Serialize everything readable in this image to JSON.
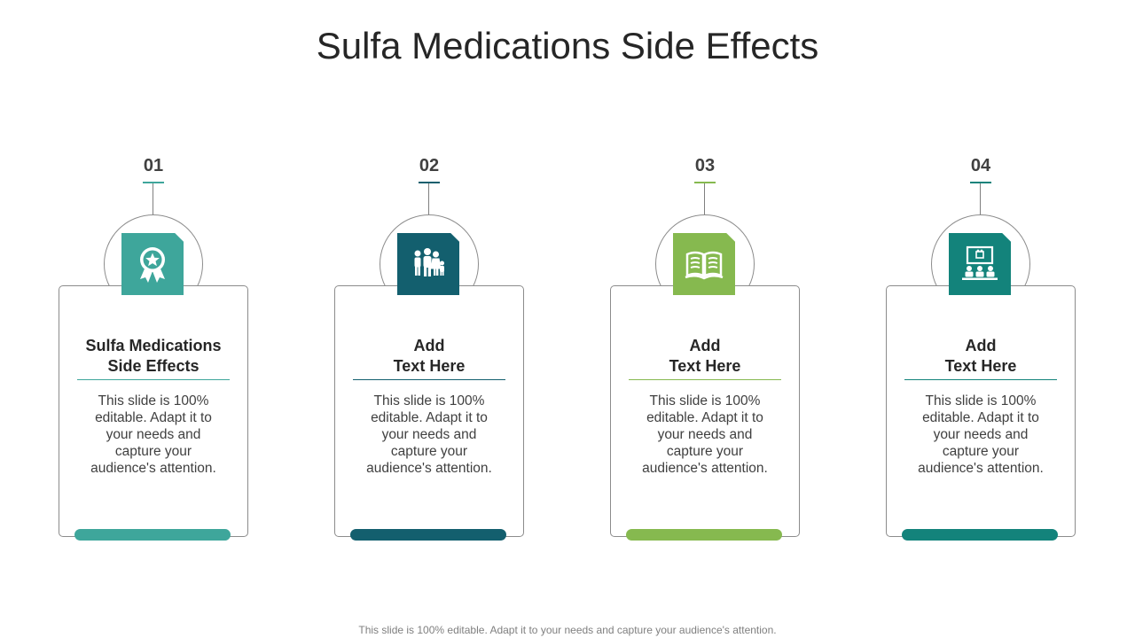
{
  "title": "Sulfa Medications Side Effects",
  "footer": "This slide is 100% editable. Adapt it to your needs and capture your audience's attention.",
  "items": [
    {
      "number": "01",
      "heading_line1": "Sulfa Medications",
      "heading_line2": "Side Effects",
      "body_lines": [
        "This slide is 100%",
        "editable. Adapt it to",
        "your needs and",
        "capture your",
        "audience's attention."
      ],
      "icon": "award-ribbon-icon",
      "color": "#3ea69b"
    },
    {
      "number": "02",
      "heading_line1": "Add",
      "heading_line2": "Text Here",
      "body_lines": [
        "This slide is 100%",
        "editable. Adapt it to",
        "your needs and",
        "capture your",
        "audience's attention."
      ],
      "icon": "family-icon",
      "color": "#135f6e"
    },
    {
      "number": "03",
      "heading_line1": "Add",
      "heading_line2": "Text Here",
      "body_lines": [
        "This slide is 100%",
        "editable. Adapt it to",
        "your needs and",
        "capture your",
        "audience's attention."
      ],
      "icon": "open-book-icon",
      "color": "#86b94f"
    },
    {
      "number": "04",
      "heading_line1": "Add",
      "heading_line2": "Text Here",
      "body_lines": [
        "This slide is 100%",
        "editable. Adapt it to",
        "your needs and",
        "capture your",
        "audience's attention."
      ],
      "icon": "presentation-audience-icon",
      "color": "#13837b"
    }
  ]
}
